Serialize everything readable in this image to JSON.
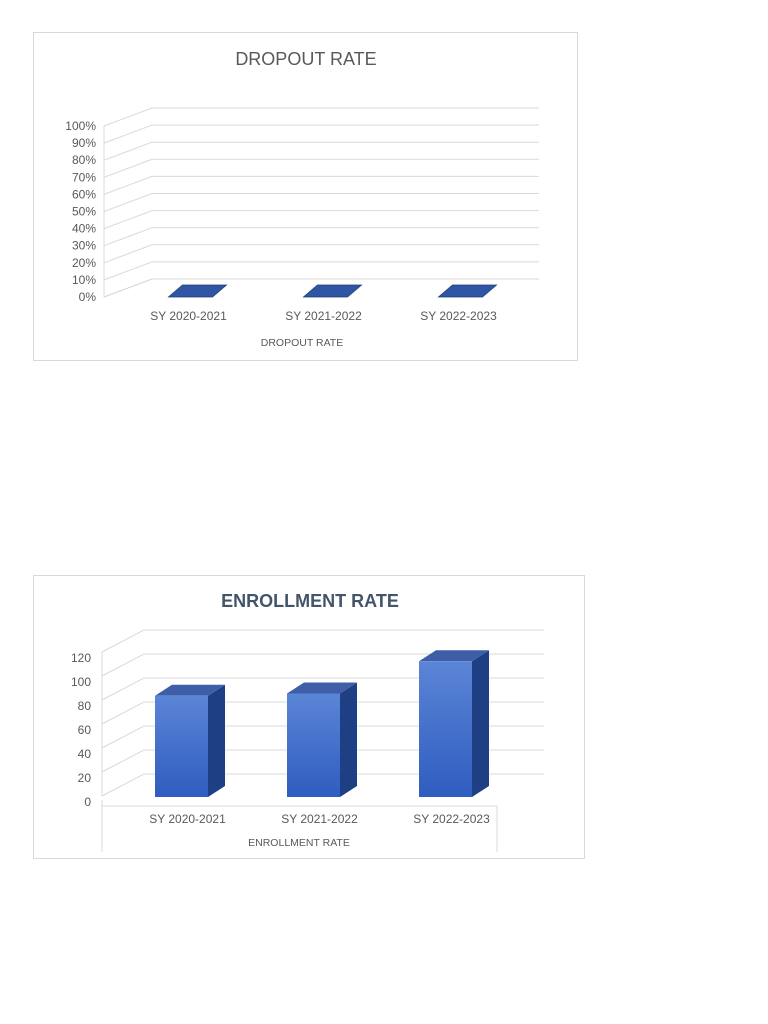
{
  "chart_data": [
    {
      "type": "bar",
      "title": "DROPOUT RATE",
      "xlabel": "DROPOUT RATE",
      "ylabel": "",
      "categories": [
        "SY 2020-2021",
        "SY 2021-2022",
        "SY 2022-2023"
      ],
      "values": [
        0,
        0,
        0
      ],
      "ylim": [
        0,
        100
      ],
      "yticks": [
        "0%",
        "10%",
        "20%",
        "30%",
        "40%",
        "50%",
        "60%",
        "70%",
        "80%",
        "90%",
        "100%"
      ],
      "grid": true,
      "legend": "none",
      "bar_color": "#2f55a4"
    },
    {
      "type": "bar",
      "title": "ENROLLMENT RATE",
      "xlabel": "ENROLLMENT RATE",
      "ylabel": "",
      "categories": [
        "SY 2020-2021",
        "SY 2021-2022",
        "SY 2022-2023"
      ],
      "values": [
        88,
        90,
        118
      ],
      "ylim": [
        0,
        120
      ],
      "yticks": [
        "0",
        "20",
        "40",
        "60",
        "80",
        "100",
        "120"
      ],
      "grid": true,
      "legend": "none",
      "bar_color": "#3a66c4"
    }
  ]
}
